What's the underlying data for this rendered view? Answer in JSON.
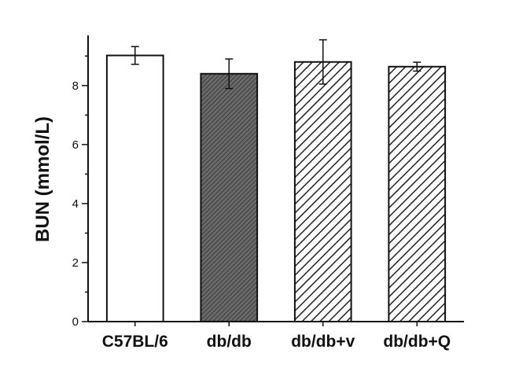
{
  "chart_data": {
    "type": "bar",
    "title": "",
    "xlabel": "",
    "ylabel": "BUN (mmol/L)",
    "ylim": [
      0,
      9.7
    ],
    "yticks": [
      0,
      2,
      4,
      6,
      8
    ],
    "categories": [
      "C57BL/6",
      "db/db",
      "db/db+v",
      "db/db+Q"
    ],
    "values": [
      9.02,
      8.4,
      8.8,
      8.64
    ],
    "errors": [
      0.3,
      0.5,
      0.75,
      0.15
    ],
    "fills": [
      "none",
      "dense-crosshatch",
      "diagonal-hatch",
      "diagonal-hatch"
    ],
    "grid": false,
    "colors": {
      "stroke": "#111111",
      "background": "#ffffff",
      "dense_fill": "#555555"
    }
  }
}
